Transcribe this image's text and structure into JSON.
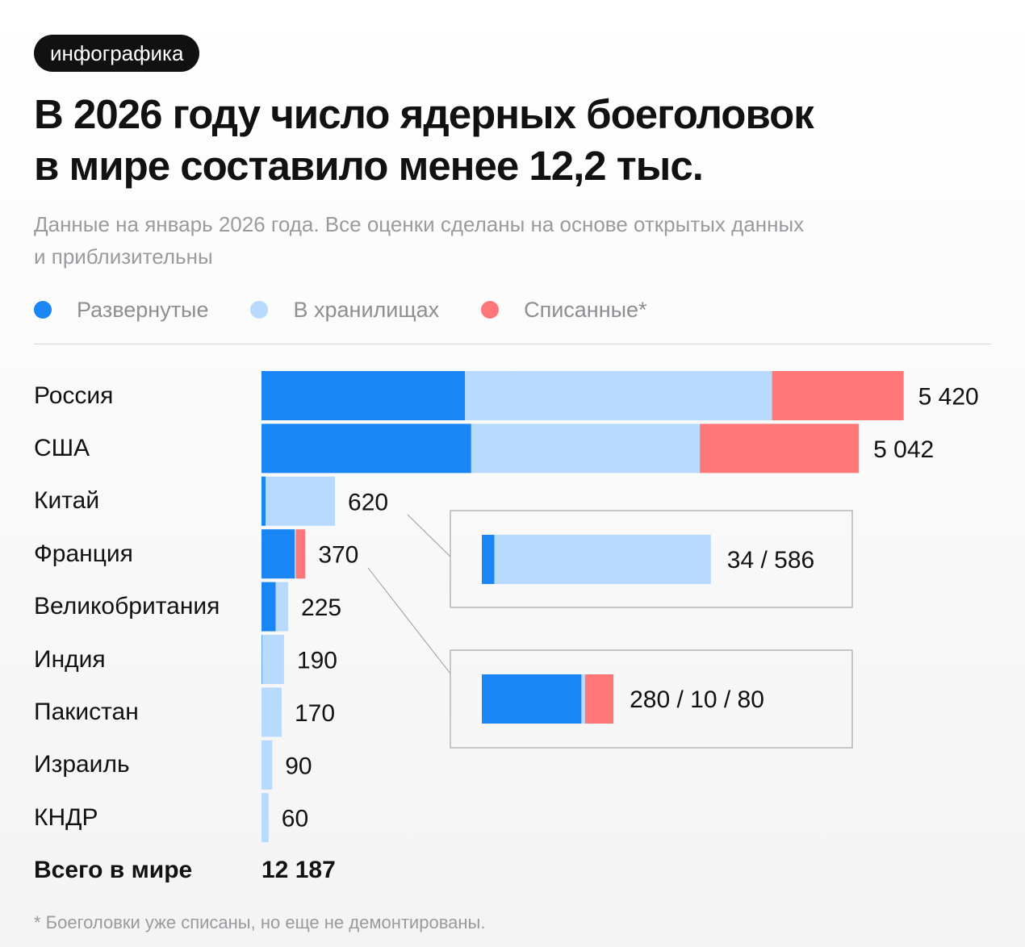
{
  "tag": "инфографика",
  "title_line1": "В 2026 году число ядерных боеголовок",
  "title_line2": "в мире составило менее 12,2 тыс.",
  "subtitle_line1": "Данные на январь 2026 года. Все оценки сделаны на основе открытых данных",
  "subtitle_line2": "и приблизительны",
  "colors": {
    "deployed": "#1a85f5",
    "stored": "#b8dafd",
    "retired": "#ff7778"
  },
  "legend": [
    {
      "label": "Развернутые",
      "color": "#1a85f5"
    },
    {
      "label": "В хранилищах",
      "color": "#b8dafd"
    },
    {
      "label": "Списанные*",
      "color": "#ff7778"
    }
  ],
  "chart_data": {
    "type": "bar",
    "orientation": "horizontal",
    "stacked": true,
    "categories": [
      "Россия",
      "США",
      "Китай",
      "Франция",
      "Великобритания",
      "Индия",
      "Пакистан",
      "Израиль",
      "КНДР"
    ],
    "series": [
      {
        "name": "Развернутые",
        "values": [
          1718,
          1770,
          34,
          280,
          120,
          5,
          0,
          0,
          0
        ]
      },
      {
        "name": "В хранилищах",
        "values": [
          2591,
          1930,
          586,
          10,
          105,
          185,
          170,
          90,
          60
        ]
      },
      {
        "name": "Списанные*",
        "values": [
          1111,
          1342,
          0,
          80,
          0,
          0,
          0,
          0,
          0
        ]
      }
    ],
    "totals_display": [
      "5 420",
      "5 042",
      "620",
      "370",
      "225",
      "190",
      "170",
      "90",
      "60"
    ],
    "callouts": [
      {
        "category": "Китай",
        "text": "34 / 586"
      },
      {
        "category": "Франция",
        "text": "280 / 10 / 80"
      }
    ],
    "grid": false,
    "legend_position": "top"
  },
  "total": {
    "label": "Всего в мире",
    "value": "12 187"
  },
  "footnote": "* Боеголовки уже списаны, но еще не демонтированы."
}
